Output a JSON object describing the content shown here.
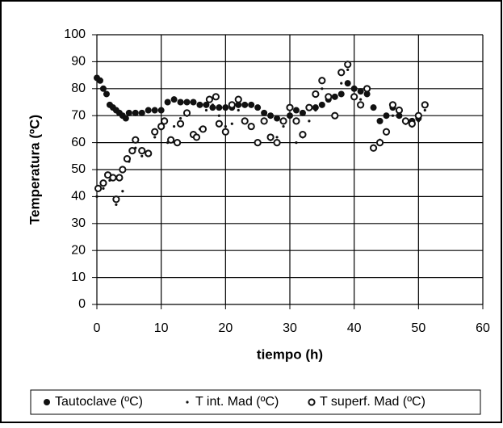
{
  "chart_data": {
    "type": "scatter",
    "x_label": "tiempo (h)",
    "y_label": "Temperatura (ºC)",
    "xlim": [
      0,
      60
    ],
    "xticks": [
      0,
      10,
      20,
      30,
      40,
      50,
      60
    ],
    "ylim": [
      0,
      100
    ],
    "yticks": [
      0,
      10,
      20,
      30,
      40,
      50,
      60,
      70,
      80,
      90,
      100
    ],
    "grid": true,
    "legend": "bottom",
    "series": [
      {
        "name": "Tautoclave (ºC)",
        "color": "#111111",
        "marker": "filled",
        "x": [
          0,
          0.5,
          1,
          1.5,
          2,
          2.5,
          3,
          3.5,
          4,
          4.5,
          5,
          6,
          7,
          8,
          9,
          10,
          11,
          12,
          13,
          14,
          15,
          16,
          17,
          18,
          19,
          20,
          21,
          22,
          23,
          24,
          25,
          26,
          27,
          28,
          29,
          30,
          31,
          32,
          33,
          34,
          35,
          36,
          37,
          38,
          39,
          40,
          41,
          42,
          43,
          44,
          45,
          46,
          47,
          48,
          49,
          50
        ],
        "values": [
          84,
          83,
          80,
          78,
          74,
          73,
          72,
          71,
          70,
          69,
          71,
          71,
          71,
          72,
          72,
          72,
          75,
          76,
          75,
          75,
          75,
          74,
          74,
          73,
          73,
          73,
          73,
          74,
          74,
          74,
          73,
          71,
          70,
          69,
          68,
          70,
          72,
          71,
          73,
          73,
          74,
          76,
          77,
          78,
          82,
          80,
          79,
          78,
          73,
          68,
          70,
          73,
          70,
          68,
          68,
          69
        ]
      },
      {
        "name": "T int. Mad (ºC)",
        "color": "#111111",
        "marker": "dot",
        "x": [
          0,
          1,
          2,
          3,
          4,
          5,
          6,
          7,
          8,
          9,
          10,
          11,
          12,
          13,
          14,
          15,
          16,
          17,
          18,
          19,
          20,
          21,
          22,
          23,
          24,
          25,
          26,
          27,
          28,
          29,
          30,
          31,
          32,
          33,
          34,
          35,
          36,
          37,
          38,
          39,
          40,
          41,
          42,
          43,
          44,
          45,
          46,
          47,
          48,
          49,
          50,
          51
        ],
        "values": [
          40,
          43,
          46,
          37,
          42,
          53,
          58,
          55,
          56,
          62,
          65,
          60,
          66,
          69,
          70,
          63,
          65,
          72,
          74,
          70,
          66,
          67,
          72,
          68,
          66,
          60,
          68,
          61,
          62,
          66,
          70,
          60,
          62,
          68,
          72,
          80,
          77,
          70,
          82,
          87,
          80,
          76,
          78,
          58,
          61,
          64,
          70,
          72,
          67,
          66,
          68,
          72
        ]
      },
      {
        "name": "T superf. Mad (ºC)",
        "color": "#111111",
        "marker": "open",
        "x": [
          0.2,
          1,
          1.7,
          2.5,
          3,
          3.5,
          4,
          4.7,
          5.5,
          6,
          7,
          8,
          9,
          10,
          10.5,
          11.5,
          12.5,
          13,
          14,
          15,
          15.5,
          16.5,
          17.5,
          18.5,
          19,
          20,
          21,
          22,
          23,
          24,
          25,
          26,
          27,
          28,
          29,
          30,
          31,
          32,
          33,
          34,
          35,
          36,
          37,
          38,
          39,
          40,
          41,
          42,
          43,
          44,
          45,
          46,
          47,
          48,
          49,
          50,
          51
        ],
        "values": [
          43,
          45,
          48,
          47,
          39,
          47,
          50,
          54,
          57,
          61,
          57,
          56,
          64,
          66,
          68,
          61,
          60,
          67,
          71,
          63,
          62,
          65,
          76,
          77,
          67,
          64,
          74,
          76,
          68,
          66,
          60,
          68,
          62,
          60,
          68,
          73,
          68,
          63,
          73,
          78,
          83,
          77,
          70,
          86,
          89,
          77,
          74,
          80,
          58,
          60,
          64,
          74,
          72,
          68,
          67,
          70,
          74
        ]
      }
    ]
  }
}
